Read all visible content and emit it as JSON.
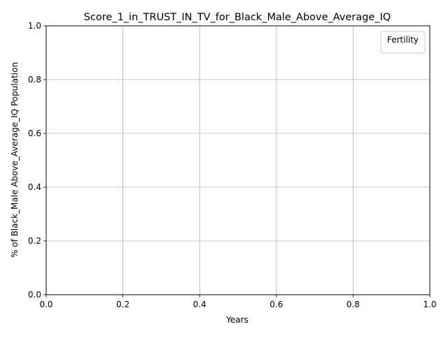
{
  "chart_data": {
    "type": "line",
    "title": "Score_1_in_TRUST_IN_TV_for_Black_Male_Above_Average_IQ",
    "xlabel": "Years",
    "ylabel": "% of Black_Male Above_Average_IQ Population",
    "xlim": [
      0.0,
      1.0
    ],
    "ylim": [
      0.0,
      1.0
    ],
    "x_ticks": [
      "0.0",
      "0.2",
      "0.4",
      "0.6",
      "0.8",
      "1.0"
    ],
    "y_ticks": [
      "0.0",
      "0.2",
      "0.4",
      "0.6",
      "0.8",
      "1.0"
    ],
    "grid": true,
    "legend": {
      "title": "Fertility",
      "position": "upper right",
      "entries": []
    },
    "series": []
  }
}
